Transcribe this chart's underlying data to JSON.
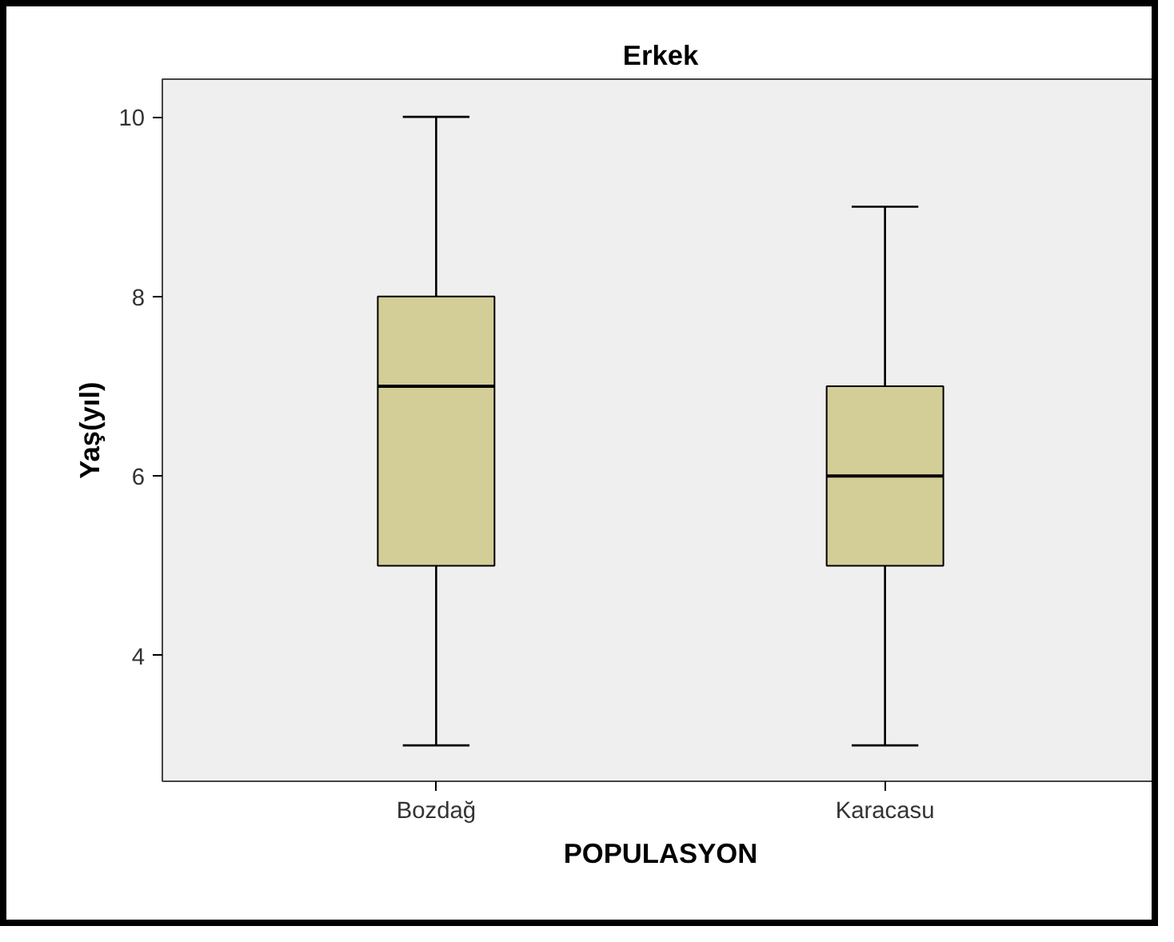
{
  "chart_data": {
    "type": "box",
    "title": "Erkek",
    "xlabel": "POPULASYON",
    "ylabel": "Yaş(yıl)",
    "categories": [
      "Bozdağ",
      "Karacasu"
    ],
    "series": [
      {
        "color": "#d3ce97",
        "boxes": [
          {
            "low": 3,
            "q1": 5,
            "median": 7,
            "q3": 8,
            "high": 10
          },
          {
            "low": 3,
            "q1": 5,
            "median": 6,
            "q3": 7,
            "high": 9
          }
        ]
      }
    ],
    "ylim": [
      2.6,
      10.42
    ],
    "yticks": [
      4,
      6,
      8,
      10
    ],
    "grid": false
  }
}
